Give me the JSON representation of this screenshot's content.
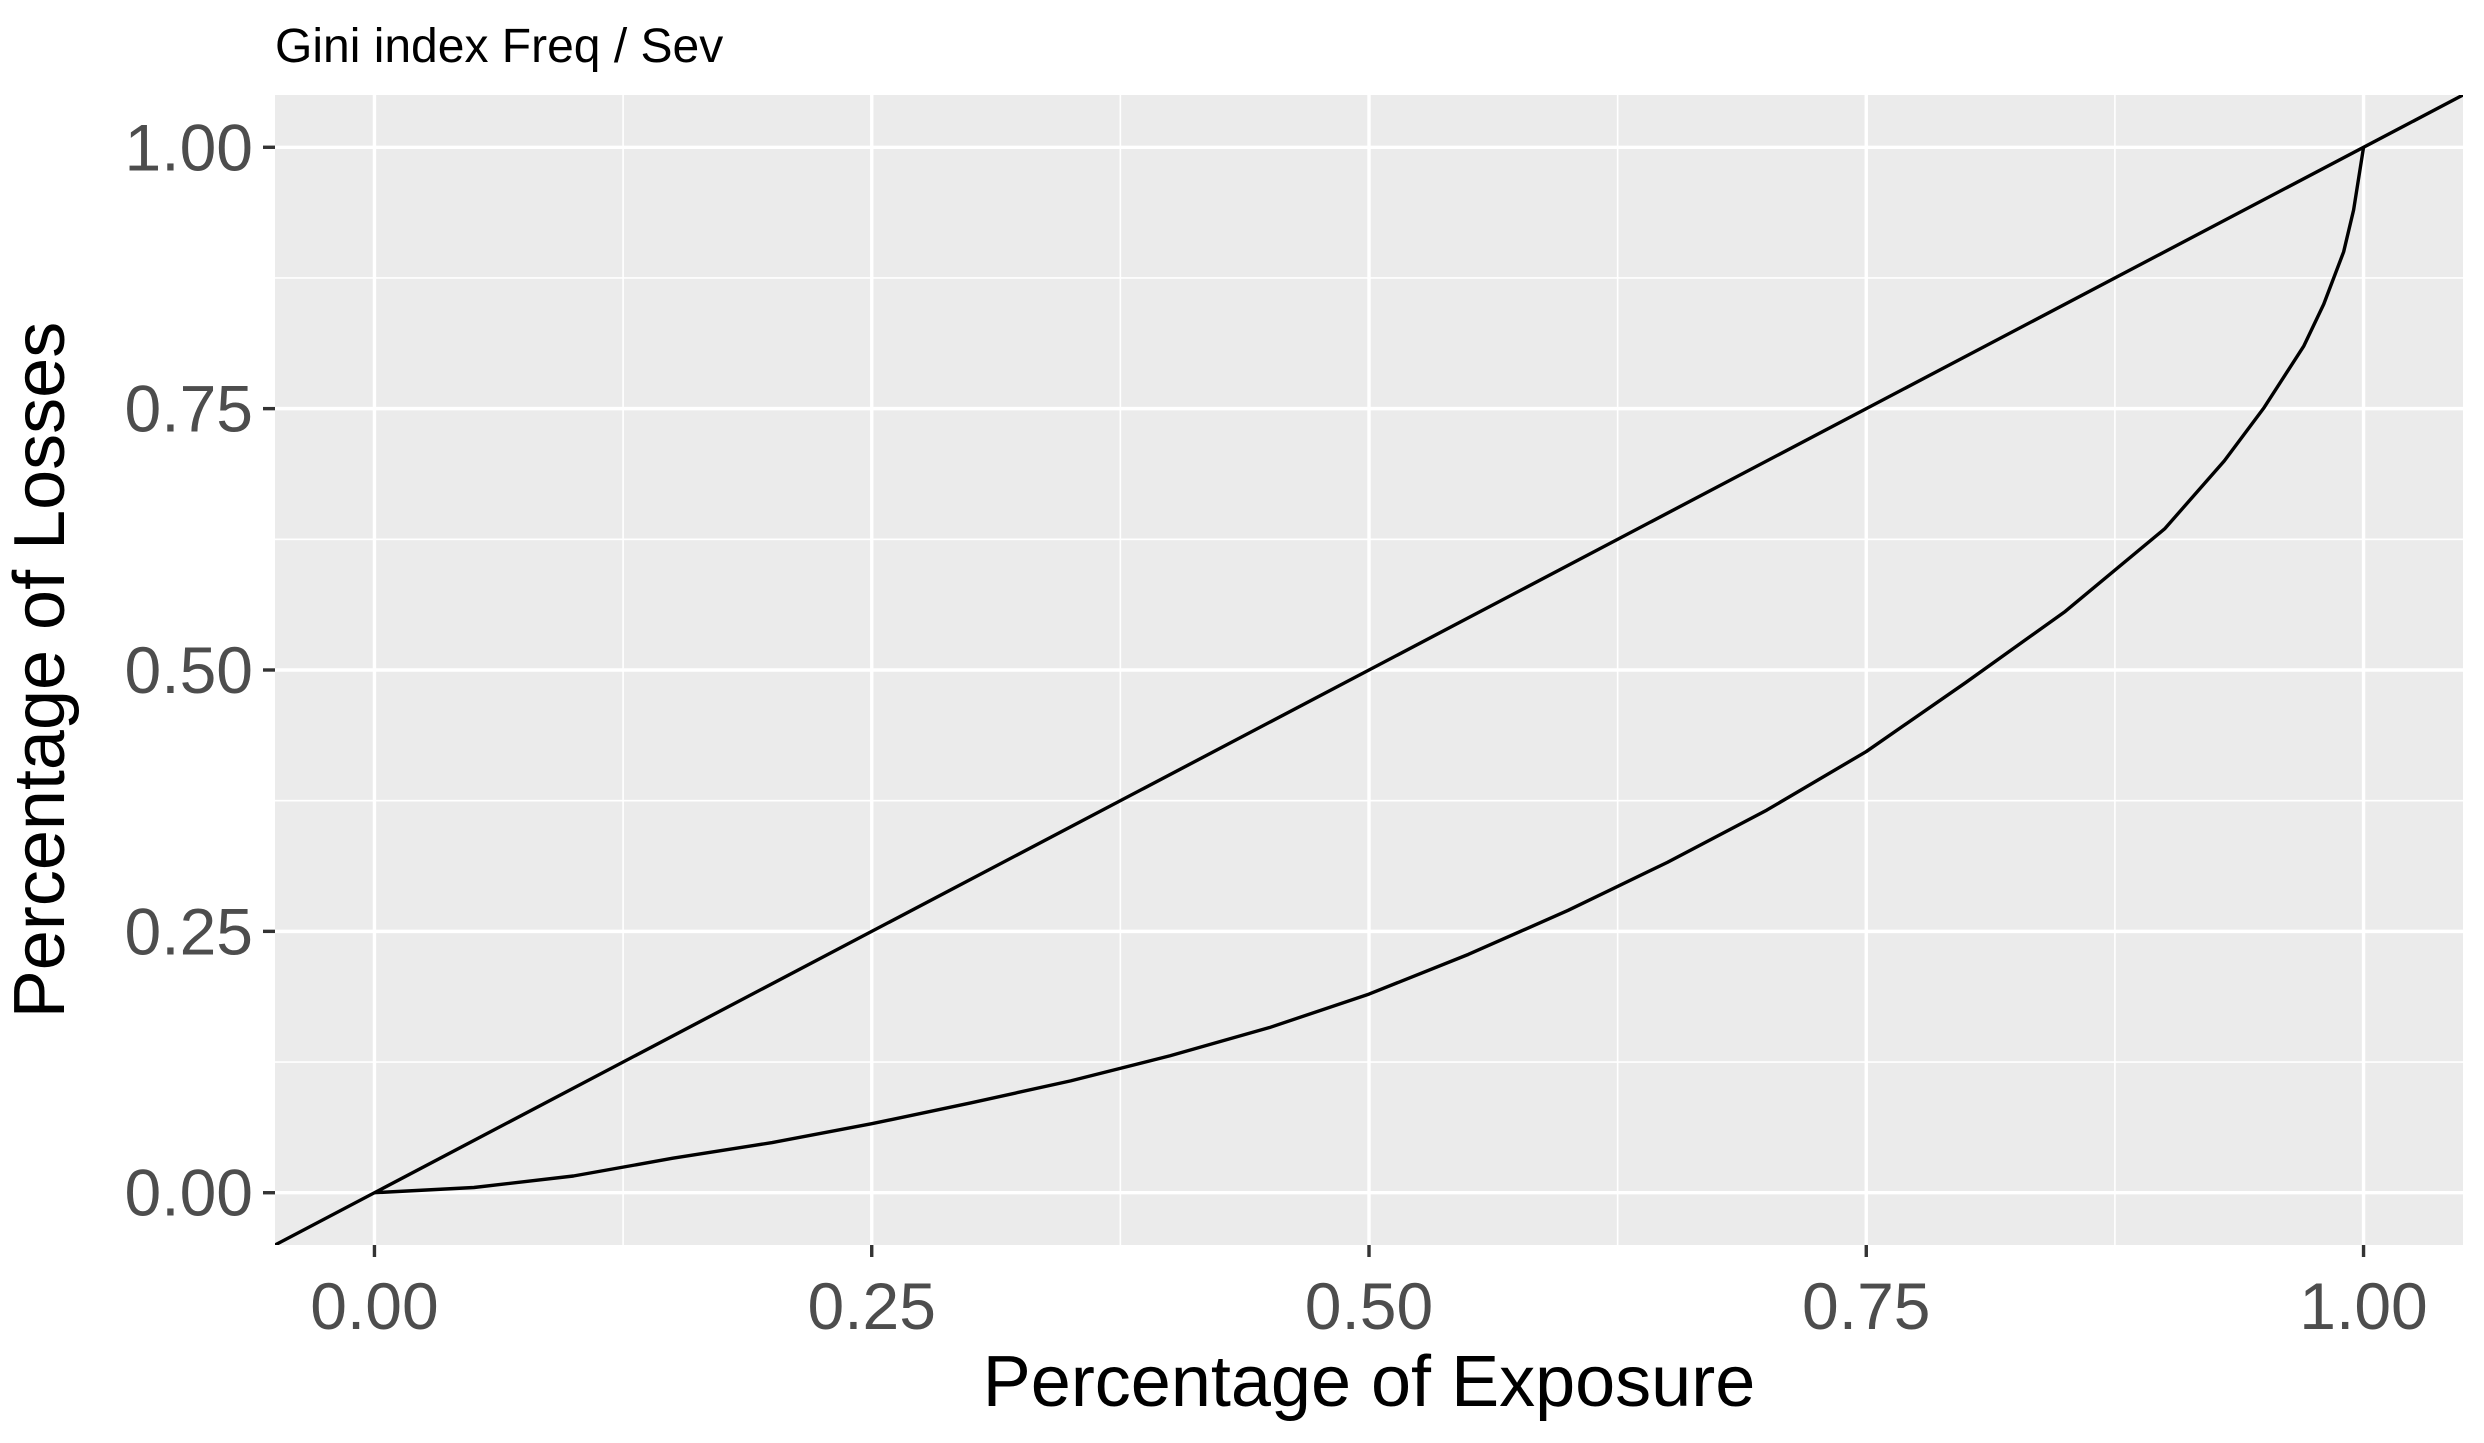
{
  "chart_data": {
    "type": "line",
    "title": "Gini index Freq / Sev",
    "xlabel": "Percentage of Exposure",
    "ylabel": "Percentage of Losses",
    "xlim": [
      -0.05,
      1.05
    ],
    "ylim": [
      -0.05,
      1.05
    ],
    "x_ticks": [
      "0.00",
      "0.25",
      "0.50",
      "0.75",
      "1.00"
    ],
    "y_ticks": [
      "0.00",
      "0.25",
      "0.50",
      "0.75",
      "1.00"
    ],
    "grid": true,
    "background": "#ebebeb",
    "gridline_color": "#ffffff",
    "line_color": "#000000",
    "series": [
      {
        "kind": "reference line y = x",
        "x": [
          -0.05,
          1.05
        ],
        "y": [
          -0.05,
          1.05
        ]
      },
      {
        "kind": "lorenz curve",
        "x": [
          0,
          0.05,
          0.1,
          0.15,
          0.2,
          0.25,
          0.3,
          0.35,
          0.4,
          0.45,
          0.5,
          0.55,
          0.6,
          0.65,
          0.7,
          0.75,
          0.8,
          0.85,
          0.9,
          0.93,
          0.95,
          0.97,
          0.98,
          0.99,
          0.995,
          1.0
        ],
        "y": [
          0,
          0.005,
          0.016,
          0.033,
          0.048,
          0.066,
          0.086,
          0.107,
          0.131,
          0.158,
          0.19,
          0.228,
          0.27,
          0.316,
          0.366,
          0.422,
          0.488,
          0.556,
          0.635,
          0.7,
          0.751,
          0.81,
          0.85,
          0.9,
          0.94,
          1.0
        ]
      }
    ]
  }
}
